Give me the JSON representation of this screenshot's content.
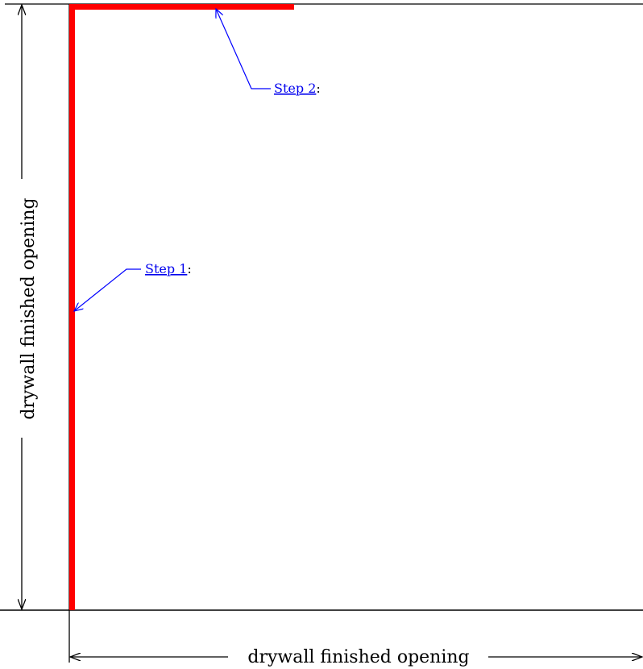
{
  "dimensions": {
    "horizontal_label": "drywall finished opening",
    "vertical_label": "drywall finished opening"
  },
  "steps": [
    {
      "link_text": "Step 1",
      "suffix": ":"
    },
    {
      "link_text": "Step 2",
      "suffix": ":"
    }
  ],
  "colors": {
    "trim": "#ff0000",
    "callout": "#0000ff",
    "link": "#0000ee",
    "line": "#000000"
  }
}
